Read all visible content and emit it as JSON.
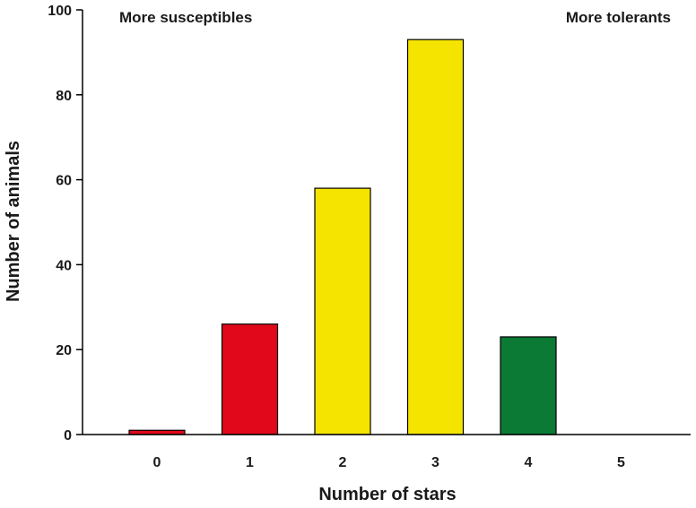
{
  "chart_data": {
    "type": "bar",
    "categories": [
      "0",
      "1",
      "2",
      "3",
      "4",
      "5"
    ],
    "values": [
      1,
      26,
      58,
      93,
      23,
      0
    ],
    "bar_colors": [
      "#e0081a",
      "#e0081a",
      "#f5e400",
      "#f5e400",
      "#0a7a35",
      "#0a7a35"
    ],
    "xlabel": "Number of stars",
    "ylabel": "Number of animals",
    "ylim": [
      0,
      100
    ],
    "yticks": [
      0,
      20,
      40,
      60,
      80,
      100
    ],
    "grid": false,
    "annotations": {
      "left": "More susceptibles",
      "right": "More tolerants"
    }
  }
}
